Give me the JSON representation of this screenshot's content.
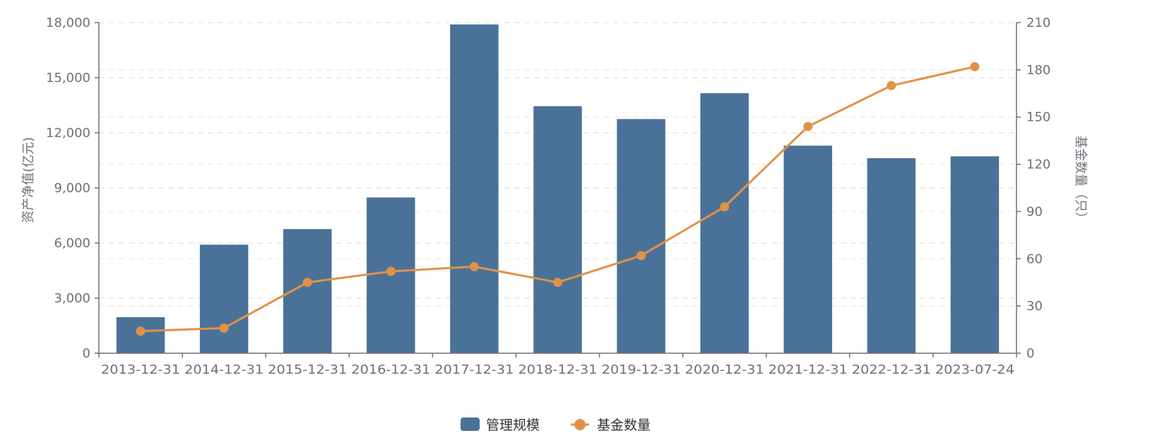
{
  "chart_data": {
    "type": "bar",
    "categories": [
      "2013-12-31",
      "2014-12-31",
      "2015-12-31",
      "2016-12-31",
      "2017-12-31",
      "2018-12-31",
      "2019-12-31",
      "2020-12-31",
      "2021-12-31",
      "2022-12-31",
      "2023-07-24"
    ],
    "series": [
      {
        "name": "管理规模",
        "type": "bar",
        "axis": "left",
        "color": "#4a7298",
        "values": [
          1960,
          5910,
          6760,
          8480,
          17900,
          13450,
          12750,
          14160,
          11300,
          10620,
          10720
        ]
      },
      {
        "name": "基金数量",
        "type": "line",
        "axis": "right",
        "color": "#e09246",
        "values": [
          14,
          16,
          45,
          52,
          55,
          45,
          62,
          93,
          144,
          170,
          182
        ]
      }
    ],
    "ylabel": "资产净值(亿元)",
    "y2label": "基金数量（只）",
    "ylim": [
      0,
      18000
    ],
    "y2lim": [
      0,
      210
    ],
    "yticks": [
      "0",
      "3,000",
      "6,000",
      "9,000",
      "12,000",
      "15,000",
      "18,000"
    ],
    "y2ticks": [
      "0",
      "30",
      "60",
      "90",
      "120",
      "150",
      "180",
      "210"
    ],
    "grid": true,
    "legend": "bottom-center"
  }
}
